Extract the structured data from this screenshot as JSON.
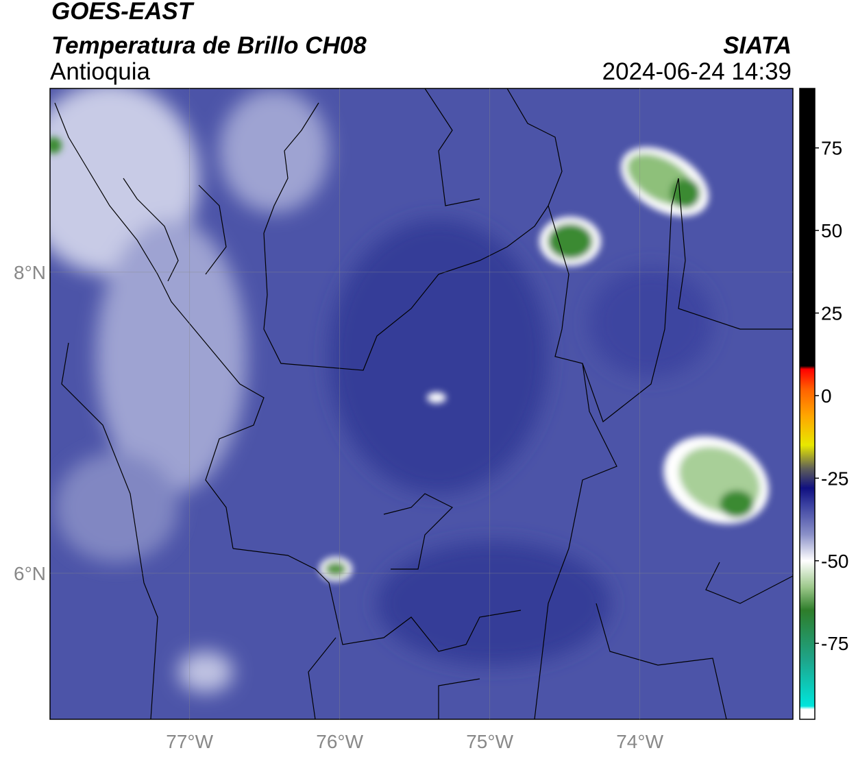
{
  "header": {
    "title": "GOES-EAST",
    "subtitle": "Temperatura de Brillo CH08",
    "source": "SIATA",
    "region": "Antioquia",
    "timestamp": "2024-06-24 14:39"
  },
  "map": {
    "xlim": [
      -77.93,
      -72.98
    ],
    "ylim": [
      5.03,
      9.22
    ],
    "xticks": [
      {
        "value": -77,
        "label": "77°W"
      },
      {
        "value": -76,
        "label": "76°W"
      },
      {
        "value": -75,
        "label": "75°W"
      },
      {
        "value": -74,
        "label": "74°W"
      }
    ],
    "yticks": [
      {
        "value": 6,
        "label": "6°N"
      },
      {
        "value": 8,
        "label": "8°N"
      }
    ],
    "grid": true
  },
  "colorbar": {
    "clim": [
      -98,
      93
    ],
    "ticks": [
      -75,
      -50,
      -25,
      0,
      25,
      50,
      75
    ],
    "stops": [
      {
        "value": -98,
        "color": "#ffffff"
      },
      {
        "value": -95,
        "color": "#ffffff"
      },
      {
        "value": -94,
        "color": "#00e5dc"
      },
      {
        "value": -80,
        "color": "#1ea58a"
      },
      {
        "value": -65,
        "color": "#2e7d2a"
      },
      {
        "value": -58,
        "color": "#9cc88a"
      },
      {
        "value": -50,
        "color": "#ffffff"
      },
      {
        "value": -42,
        "color": "#8a90c8"
      },
      {
        "value": -33,
        "color": "#3a40a0"
      },
      {
        "value": -28,
        "color": "#101080"
      },
      {
        "value": -22,
        "color": "#606058"
      },
      {
        "value": -15,
        "color": "#e8e800"
      },
      {
        "value": -6,
        "color": "#ffa500"
      },
      {
        "value": 2,
        "color": "#ff6000"
      },
      {
        "value": 8,
        "color": "#ff0000"
      },
      {
        "value": 9,
        "color": "#000000"
      },
      {
        "value": 93,
        "color": "#000000"
      }
    ]
  }
}
